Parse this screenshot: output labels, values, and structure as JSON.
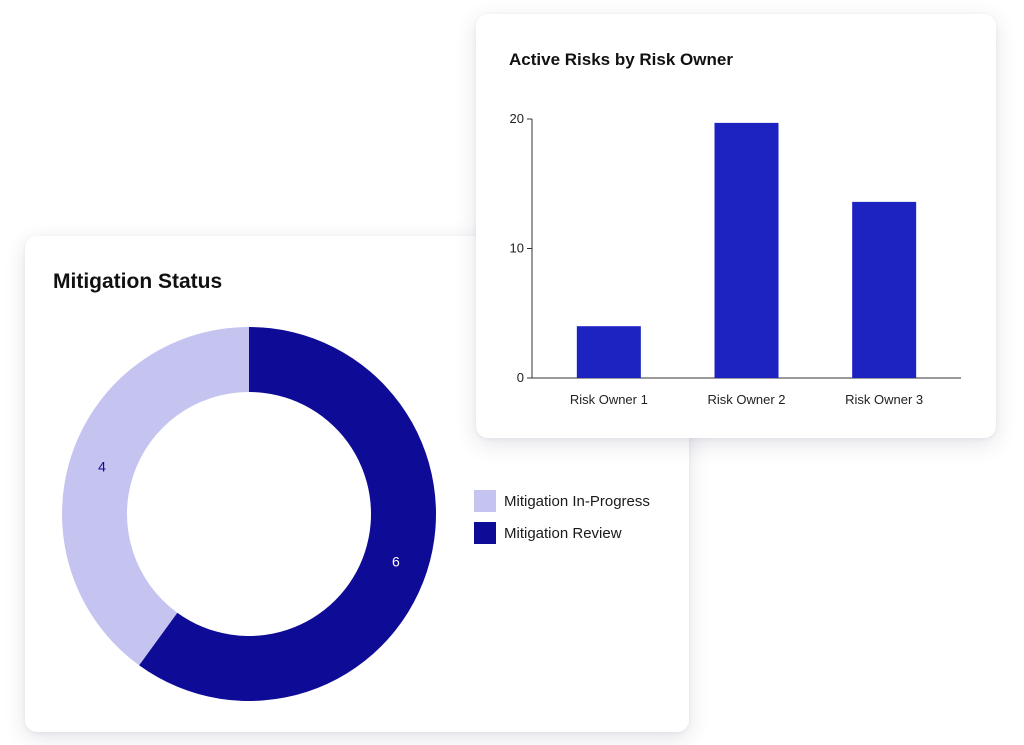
{
  "colors": {
    "in_progress": "#c5c4f0",
    "review": "#0e0b96",
    "bar": "#1c23c0"
  },
  "chart_data": [
    {
      "type": "pie",
      "title": "Mitigation Status",
      "categories": [
        "Mitigation In-Progress",
        "Mitigation Review"
      ],
      "values": [
        4,
        6
      ],
      "data_labels": [
        "4",
        "6"
      ],
      "donut": true,
      "legend": "right"
    },
    {
      "type": "bar",
      "title": "Active Risks by Risk Owner",
      "categories": [
        "Risk Owner 1",
        "Risk Owner 2",
        "Risk Owner 3"
      ],
      "values": [
        4,
        19.7,
        13.6
      ],
      "y_ticks": [
        "0",
        "10",
        "20"
      ],
      "ylim": [
        0,
        20
      ],
      "grid": false,
      "xlabel": "",
      "ylabel": ""
    }
  ]
}
